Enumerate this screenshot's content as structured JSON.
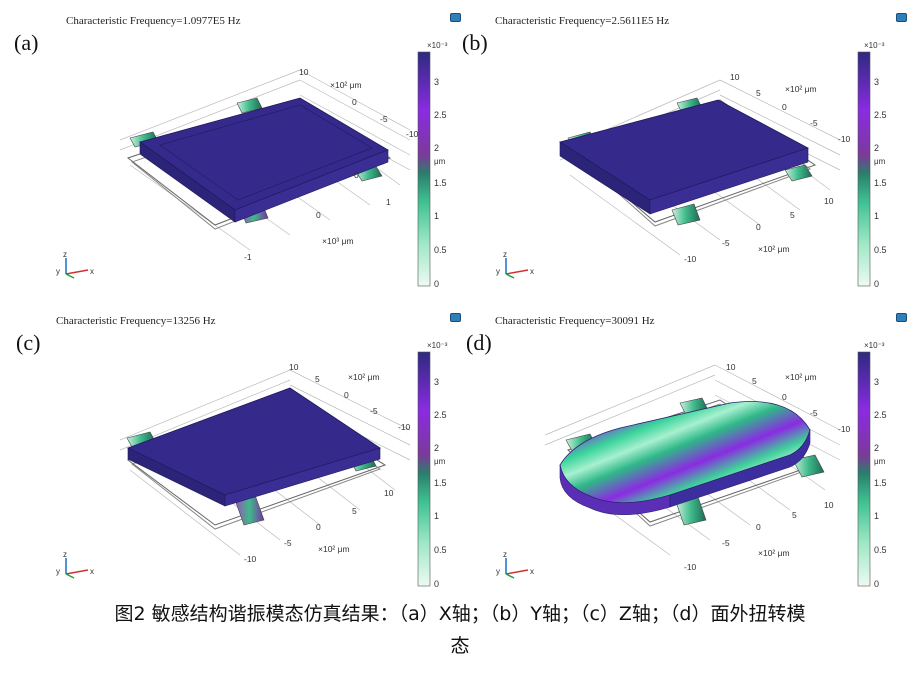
{
  "colorbar": {
    "unit_exp": "×10⁻³",
    "unit": "μm",
    "ticks": [
      "3",
      "2.5",
      "2",
      "1.5",
      "1",
      "0.5",
      "0"
    ],
    "colors": [
      "#eefaf3",
      "#9fe8c6",
      "#3fc192",
      "#2a7f6b",
      "#7c3a9a",
      "#8a2be2",
      "#2d2a80"
    ]
  },
  "axes": {
    "triad_labels": [
      "z",
      "y",
      "x"
    ]
  },
  "panels": [
    {
      "letter": "(a)",
      "title": "Characteristic Frequency=1.0977E5 Hz",
      "axis_labels": [
        "10",
        "×10² μm",
        "0",
        "-5",
        "-10",
        "0",
        "1",
        "0",
        "×10³ μm",
        "-1"
      ]
    },
    {
      "letter": "(b)",
      "title": "Characteristic Frequency=2.5611E5 Hz",
      "axis_labels": [
        "10",
        "5",
        "×10² μm",
        "0",
        "-5",
        "-10",
        "5",
        "0",
        "10",
        "-5",
        "×10² μm",
        "-10"
      ]
    },
    {
      "letter": "(c)",
      "title": "Characteristic Frequency=13256 Hz",
      "axis_labels": [
        "10",
        "5",
        "×10² μm",
        "0",
        "-5",
        "-10",
        "5",
        "0",
        "10",
        "-5",
        "×10² μm",
        "-10"
      ]
    },
    {
      "letter": "(d)",
      "title": "Characteristic Frequency=30091 Hz",
      "axis_labels": [
        "10",
        "5",
        "×10² μm",
        "0",
        "-5",
        "-10",
        "5",
        "0",
        "10",
        "-5",
        "×10² μm",
        "-10"
      ]
    }
  ],
  "caption": {
    "line1": "图2 敏感结构谐振模态仿真结果：（a）X轴；（b）Y轴；（c）Z轴；（d）面外扭转模",
    "line2": "态"
  }
}
